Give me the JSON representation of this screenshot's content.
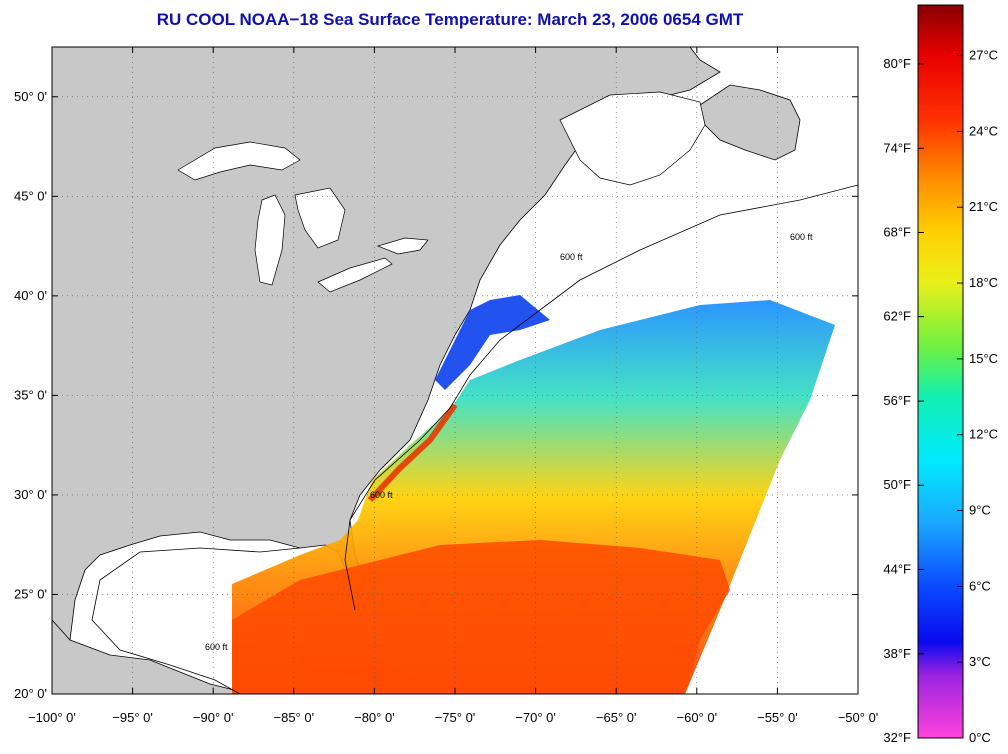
{
  "title": "RU COOL  NOAA−18  Sea Surface Temperature:  March 23, 2006 0654 GMT",
  "map": {
    "lon_range": [
      -100,
      -50
    ],
    "lat_range": [
      20,
      52.5
    ],
    "lon_ticks": [
      {
        "value": -100,
        "label": "−100° 0'"
      },
      {
        "value": -95,
        "label": "−95° 0'"
      },
      {
        "value": -90,
        "label": "−90° 0'"
      },
      {
        "value": -85,
        "label": "−85° 0'"
      },
      {
        "value": -80,
        "label": "−80° 0'"
      },
      {
        "value": -75,
        "label": "−75° 0'"
      },
      {
        "value": -70,
        "label": "−70° 0'"
      },
      {
        "value": -65,
        "label": "−65° 0'"
      },
      {
        "value": -60,
        "label": "−60° 0'"
      },
      {
        "value": -55,
        "label": "−55° 0'"
      },
      {
        "value": -50,
        "label": "−50° 0'"
      }
    ],
    "lat_ticks": [
      {
        "value": 20,
        "label": "20° 0'"
      },
      {
        "value": 25,
        "label": "25° 0'"
      },
      {
        "value": 30,
        "label": "30° 0'"
      },
      {
        "value": 35,
        "label": "35° 0'"
      },
      {
        "value": 40,
        "label": "40° 0'"
      },
      {
        "value": 45,
        "label": "45° 0'"
      },
      {
        "value": 50,
        "label": "50° 0'"
      }
    ],
    "contour_label": "600 ft",
    "colors": {
      "land": "#c8c8c8",
      "water": "#ffffff",
      "coast": "#000000",
      "grid": "#555555"
    }
  },
  "colorbar": {
    "fahrenheit_labels": [
      {
        "value": 0,
        "label": "32°F"
      },
      {
        "value": 3.33,
        "label": "38°F"
      },
      {
        "value": 6.67,
        "label": "44°F"
      },
      {
        "value": 10,
        "label": "50°F"
      },
      {
        "value": 13.33,
        "label": "56°F"
      },
      {
        "value": 16.67,
        "label": "62°F"
      },
      {
        "value": 20,
        "label": "68°F"
      },
      {
        "value": 23.33,
        "label": "74°F"
      },
      {
        "value": 26.67,
        "label": "80°F"
      }
    ],
    "celsius_labels": [
      {
        "value": 0,
        "label": "0°C"
      },
      {
        "value": 3,
        "label": "3°C"
      },
      {
        "value": 6,
        "label": "6°C"
      },
      {
        "value": 9,
        "label": "9°C"
      },
      {
        "value": 12,
        "label": "12°C"
      },
      {
        "value": 15,
        "label": "15°C"
      },
      {
        "value": 18,
        "label": "18°C"
      },
      {
        "value": 21,
        "label": "21°C"
      },
      {
        "value": 24,
        "label": "24°C"
      },
      {
        "value": 27,
        "label": "27°C"
      }
    ],
    "range_celsius": [
      0,
      29
    ],
    "gradient_stops": [
      {
        "value": 0,
        "color": "#ff44dd"
      },
      {
        "value": 2.5,
        "color": "#9a22e0"
      },
      {
        "value": 3.8,
        "color": "#0a0aee"
      },
      {
        "value": 6,
        "color": "#0a4aff"
      },
      {
        "value": 8.5,
        "color": "#1aa8ff"
      },
      {
        "value": 11,
        "color": "#00eaff"
      },
      {
        "value": 13.5,
        "color": "#10f0b0"
      },
      {
        "value": 15.5,
        "color": "#70f040"
      },
      {
        "value": 18,
        "color": "#e8f01a"
      },
      {
        "value": 20,
        "color": "#ffd000"
      },
      {
        "value": 22,
        "color": "#ff9000"
      },
      {
        "value": 24.5,
        "color": "#ff3000"
      },
      {
        "value": 27,
        "color": "#e80000"
      },
      {
        "value": 29,
        "color": "#880000"
      }
    ]
  }
}
